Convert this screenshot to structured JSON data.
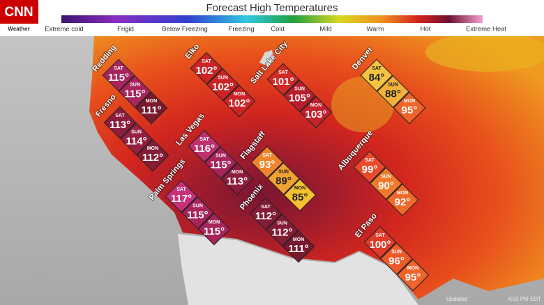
{
  "brand": {
    "logo": "CNN",
    "section": "Weather"
  },
  "title": "Forecast High Temperatures",
  "legend": [
    "Extreme cold",
    "Frigid",
    "Below Freezing",
    "Freezing",
    "Cold",
    "Mild",
    "Warm",
    "Hot",
    "Extreme Heat"
  ],
  "cities": [
    {
      "name": "Redding",
      "days": [
        {
          "day": "SAT",
          "temp": "115°",
          "color": "#a8245c"
        },
        {
          "day": "SUN",
          "temp": "115°",
          "color": "#a8245c"
        },
        {
          "day": "MON",
          "temp": "111°",
          "color": "#7a1a2e"
        }
      ]
    },
    {
      "name": "Fresno",
      "days": [
        {
          "day": "SAT",
          "temp": "113°",
          "color": "#8c1d3c"
        },
        {
          "day": "SUN",
          "temp": "114°",
          "color": "#952044"
        },
        {
          "day": "MON",
          "temp": "112°",
          "color": "#851c36"
        }
      ]
    },
    {
      "name": "Elko",
      "days": [
        {
          "day": "SAT",
          "temp": "102°",
          "color": "#cc2426"
        },
        {
          "day": "SUN",
          "temp": "102°",
          "color": "#cc2426"
        },
        {
          "day": "MON",
          "temp": "102°",
          "color": "#cc2426"
        }
      ]
    },
    {
      "name": "Salt Lake City",
      "days": [
        {
          "day": "SAT",
          "temp": "101°",
          "color": "#d02a26"
        },
        {
          "day": "SUN",
          "temp": "105°",
          "color": "#b81f2e"
        },
        {
          "day": "MON",
          "temp": "103°",
          "color": "#c2222c"
        }
      ]
    },
    {
      "name": "Denver",
      "days": [
        {
          "day": "SAT",
          "temp": "84°",
          "color": "#f5c242"
        },
        {
          "day": "SUN",
          "temp": "88°",
          "color": "#f2b13a"
        },
        {
          "day": "MON",
          "temp": "95°",
          "color": "#ee642a"
        }
      ]
    },
    {
      "name": "Las Vegas",
      "days": [
        {
          "day": "SAT",
          "temp": "116°",
          "color": "#c0306f"
        },
        {
          "day": "SUN",
          "temp": "115°",
          "color": "#a8245c"
        },
        {
          "day": "MON",
          "temp": "113°",
          "color": "#8c1d3c"
        }
      ]
    },
    {
      "name": "Flagstaff",
      "days": [
        {
          "day": "SAT",
          "temp": "93°",
          "color": "#f0842a"
        },
        {
          "day": "SUN",
          "temp": "89°",
          "color": "#f2a230"
        },
        {
          "day": "MON",
          "temp": "85°",
          "color": "#f5c030"
        }
      ]
    },
    {
      "name": "Palm Springs",
      "days": [
        {
          "day": "SAT",
          "temp": "117°",
          "color": "#c8307a"
        },
        {
          "day": "SUN",
          "temp": "115°",
          "color": "#a8245c"
        },
        {
          "day": "MON",
          "temp": "115°",
          "color": "#a8245c"
        }
      ]
    },
    {
      "name": "Phoenix",
      "days": [
        {
          "day": "SAT",
          "temp": "112°",
          "color": "#851c36"
        },
        {
          "day": "SUN",
          "temp": "112°",
          "color": "#851c36"
        },
        {
          "day": "MON",
          "temp": "111°",
          "color": "#7a1a2e"
        }
      ]
    },
    {
      "name": "Albuquerque",
      "days": [
        {
          "day": "SAT",
          "temp": "99°",
          "color": "#e84a2a"
        },
        {
          "day": "SUN",
          "temp": "90°",
          "color": "#f07a2a"
        },
        {
          "day": "MON",
          "temp": "92°",
          "color": "#ee6a2a"
        }
      ]
    },
    {
      "name": "El Paso",
      "days": [
        {
          "day": "SAT",
          "temp": "100°",
          "color": "#e03a2a"
        },
        {
          "day": "SUN",
          "temp": "96°",
          "color": "#ec5a2a"
        },
        {
          "day": "MON",
          "temp": "95°",
          "color": "#ee642a"
        }
      ]
    }
  ],
  "footer": {
    "updated": "Updated",
    "time": "4:03 PM EDT"
  }
}
